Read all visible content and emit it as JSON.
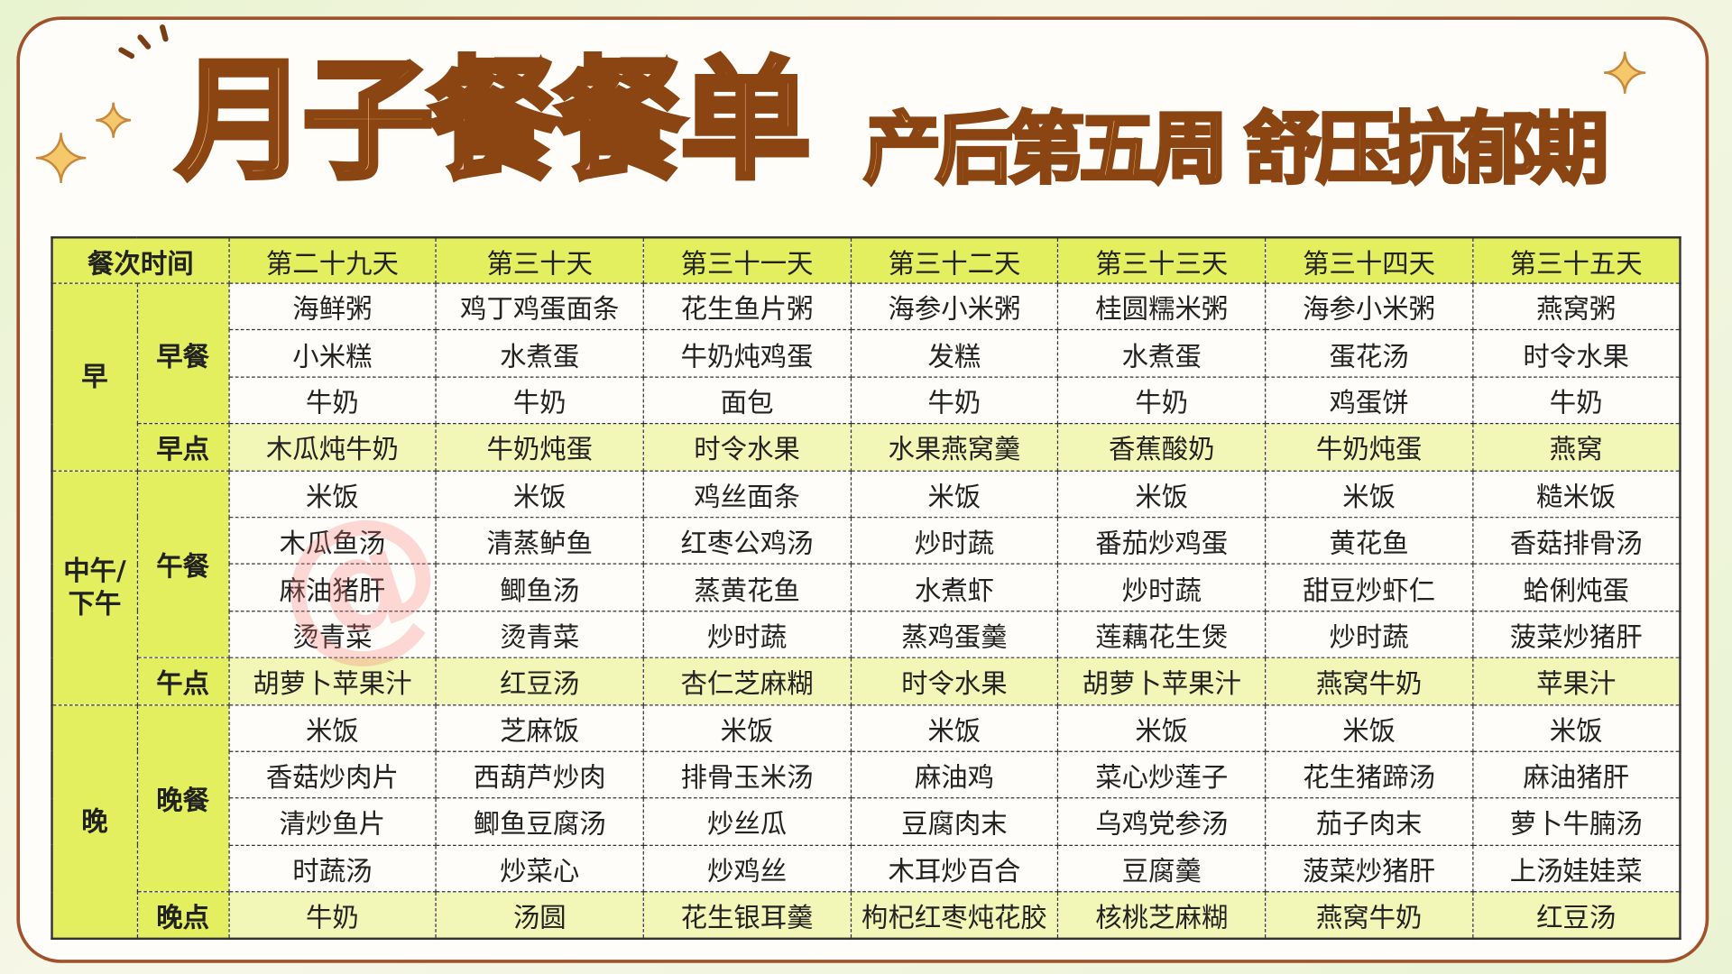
{
  "title": {
    "main_a": "月子",
    "main_b": "餐餐单",
    "subtitle": "产后第五周 舒压抗郁期"
  },
  "watermark": "@",
  "colors": {
    "header": "#e3ef5e",
    "snack_row": "#f2f6b6",
    "border": "#a0522d"
  },
  "table": {
    "corner": "餐次时间",
    "days": [
      "第二十九天",
      "第三十天",
      "第三十一天",
      "第三十二天",
      "第三十三天",
      "第三十四天",
      "第三十五天"
    ],
    "groups": [
      {
        "label": "早"
      },
      {
        "label": "中午/下午"
      },
      {
        "label": "晚"
      }
    ],
    "meals": [
      "早餐",
      "早点",
      "午餐",
      "午点",
      "晚餐",
      "晚点"
    ],
    "rows": [
      [
        "海鲜粥",
        "鸡丁鸡蛋面条",
        "花生鱼片粥",
        "海参小米粥",
        "桂圆糯米粥",
        "海参小米粥",
        "燕窝粥"
      ],
      [
        "小米糕",
        "水煮蛋",
        "牛奶炖鸡蛋",
        "发糕",
        "水煮蛋",
        "蛋花汤",
        "时令水果"
      ],
      [
        "牛奶",
        "牛奶",
        "面包",
        "牛奶",
        "牛奶",
        "鸡蛋饼",
        "牛奶"
      ],
      [
        "木瓜炖牛奶",
        "牛奶炖蛋",
        "时令水果",
        "水果燕窝羹",
        "香蕉酸奶",
        "牛奶炖蛋",
        "燕窝"
      ],
      [
        "米饭",
        "米饭",
        "鸡丝面条",
        "米饭",
        "米饭",
        "米饭",
        "糙米饭"
      ],
      [
        "木瓜鱼汤",
        "清蒸鲈鱼",
        "红枣公鸡汤",
        "炒时蔬",
        "番茄炒鸡蛋",
        "黄花鱼",
        "香菇排骨汤"
      ],
      [
        "麻油猪肝",
        "鲫鱼汤",
        "蒸黄花鱼",
        "水煮虾",
        "炒时蔬",
        "甜豆炒虾仁",
        "蛤俐炖蛋"
      ],
      [
        "烫青菜",
        "烫青菜",
        "炒时蔬",
        "蒸鸡蛋羹",
        "莲藕花生煲",
        "炒时蔬",
        "菠菜炒猪肝"
      ],
      [
        "胡萝卜苹果汁",
        "红豆汤",
        "杏仁芝麻糊",
        "时令水果",
        "胡萝卜苹果汁",
        "燕窝牛奶",
        "苹果汁"
      ],
      [
        "米饭",
        "芝麻饭",
        "米饭",
        "米饭",
        "米饭",
        "米饭",
        "米饭"
      ],
      [
        "香菇炒肉片",
        "西葫芦炒肉",
        "排骨玉米汤",
        "麻油鸡",
        "菜心炒莲子",
        "花生猪蹄汤",
        "麻油猪肝"
      ],
      [
        "清炒鱼片",
        "鲫鱼豆腐汤",
        "炒丝瓜",
        "豆腐肉末",
        "乌鸡党参汤",
        "茄子肉末",
        "萝卜牛腩汤"
      ],
      [
        "时蔬汤",
        "炒菜心",
        "炒鸡丝",
        "木耳炒百合",
        "豆腐羹",
        "菠菜炒猪肝",
        "上汤娃娃菜"
      ],
      [
        "牛奶",
        "汤圆",
        "花生银耳羹",
        "枸杞红枣炖花胶",
        "核桃芝麻糊",
        "燕窝牛奶",
        "红豆汤"
      ]
    ]
  }
}
